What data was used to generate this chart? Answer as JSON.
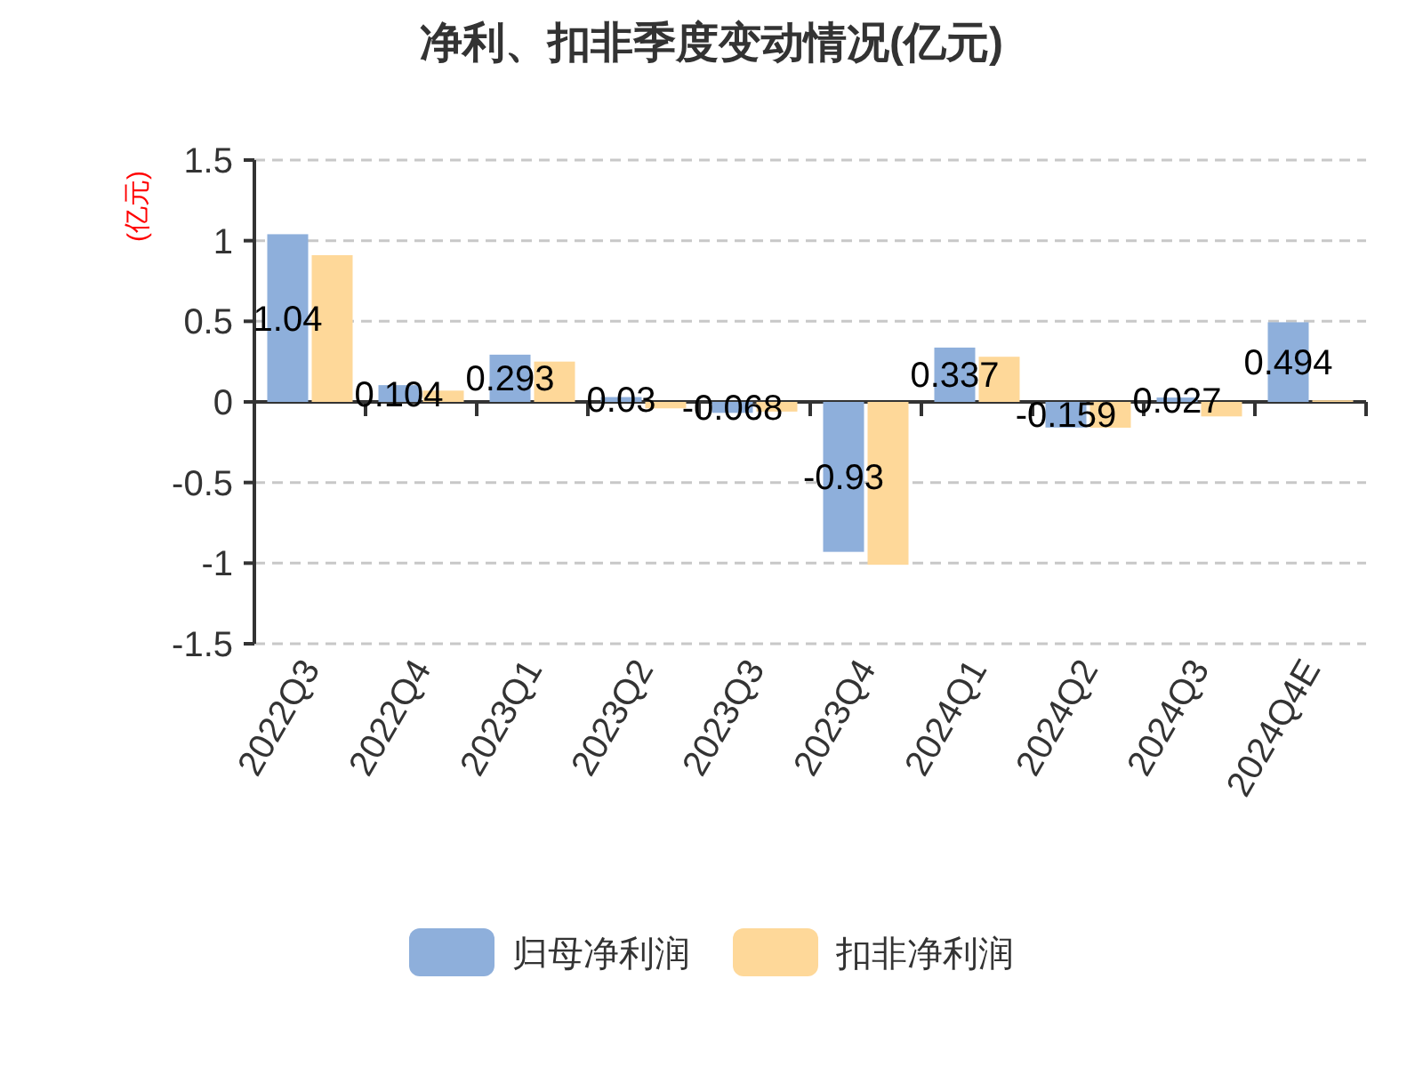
{
  "chart_data": {
    "type": "bar",
    "title": "净利、扣非季度变动情况(亿元)",
    "ylabel": "(亿元)",
    "categories": [
      "2022Q3",
      "2022Q4",
      "2023Q1",
      "2023Q2",
      "2023Q3",
      "2023Q4",
      "2024Q1",
      "2024Q2",
      "2024Q3",
      "2024Q4E"
    ],
    "series": [
      {
        "name": "归母净利润",
        "color": "#8eafdb",
        "values": [
          1.04,
          0.104,
          0.293,
          0.03,
          -0.068,
          -0.93,
          0.337,
          -0.159,
          0.027,
          0.494
        ],
        "value_labels": [
          "1.04",
          "0.104",
          "0.293",
          "0.03",
          "-0.068",
          "-0.93",
          "0.337",
          "-0.159",
          "0.027",
          "0.494"
        ]
      },
      {
        "name": "扣非净利润",
        "color": "#fed899",
        "values": [
          0.91,
          0.07,
          0.25,
          -0.04,
          -0.06,
          -1.01,
          0.28,
          -0.16,
          -0.09,
          0.01
        ]
      }
    ],
    "ylim": [
      -1.5,
      1.5
    ],
    "yticks": [
      -1.5,
      {
        "value": -1,
        "label": "-1"
      },
      -0.5,
      0,
      0.5,
      {
        "value": 1,
        "label": "1"
      },
      1.5
    ],
    "grid": "y",
    "legend": "bottom"
  }
}
